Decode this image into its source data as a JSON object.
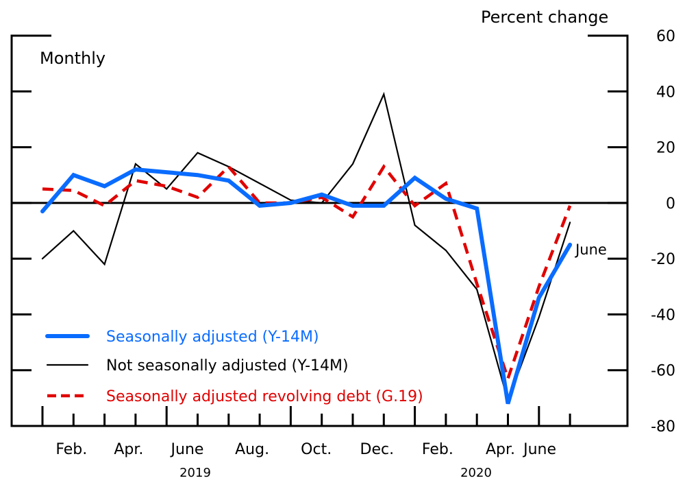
{
  "chart_data": {
    "type": "line",
    "title": "",
    "subtitle": "Monthly",
    "ylabel": "Percent change",
    "xlabel": "",
    "ylim": [
      -80,
      60
    ],
    "yticks": [
      60,
      40,
      20,
      0,
      -20,
      -40,
      -60,
      -80
    ],
    "grid": false,
    "legend_position": "bottom-left",
    "x": [
      "Jan 2019",
      "Feb 2019",
      "Mar 2019",
      "Apr 2019",
      "May 2019",
      "June 2019",
      "July 2019",
      "Aug 2019",
      "Sep 2019",
      "Oct 2019",
      "Nov 2019",
      "Dec 2019",
      "Jan 2020",
      "Feb 2020",
      "Mar 2020",
      "Apr 2020",
      "May 2020",
      "June 2020"
    ],
    "xtick_labels": [
      {
        "label": "Feb.",
        "index": 1
      },
      {
        "label": "Apr.",
        "index": 3
      },
      {
        "label": "June",
        "index": 5
      },
      {
        "label": "Aug.",
        "index": 7
      },
      {
        "label": "Oct.",
        "index": 9
      },
      {
        "label": "Dec.",
        "index": 11
      },
      {
        "label": "Feb.",
        "index": 13
      },
      {
        "label": "Apr.",
        "index": 15
      },
      {
        "label": "June",
        "index": 17
      }
    ],
    "year_labels": [
      {
        "label": "2019",
        "center_index": 5
      },
      {
        "label": "2020",
        "center_index": 14.5
      }
    ],
    "series": [
      {
        "name": "Seasonally adjusted (Y-14M)",
        "color": "#0a6cff",
        "style": "solid-thick",
        "values": [
          -3,
          10,
          6,
          12,
          11,
          10,
          8,
          -1,
          0,
          3,
          -1,
          -1,
          9,
          1.5,
          -2,
          -72,
          -34,
          -15
        ]
      },
      {
        "name": "Not seasonally adjusted (Y-14M)",
        "color": "#000000",
        "style": "solid-thin",
        "values": [
          -20,
          -10,
          -22,
          14,
          5,
          18,
          13,
          7,
          1,
          0,
          14,
          39,
          -8,
          -17,
          -31,
          -71,
          -41,
          -7
        ]
      },
      {
        "name": "Seasonally adjusted revolving debt (G.19)",
        "color": "#e00000",
        "style": "dashed",
        "values": [
          5,
          4.5,
          -1,
          8,
          6,
          2,
          13,
          0,
          0,
          2,
          -5,
          13,
          -1,
          7,
          -29,
          -63,
          -30,
          -1
        ]
      }
    ],
    "annotations": [
      {
        "text": "June",
        "series": 0,
        "index": 17
      }
    ]
  }
}
